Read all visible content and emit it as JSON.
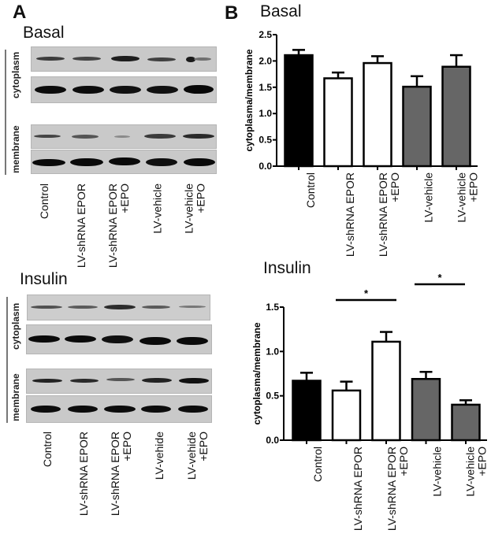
{
  "panel_a": {
    "letter": "A",
    "basal": {
      "title": "Basal",
      "side_labels": [
        "cytoplasm",
        "membrane"
      ],
      "lanes": [
        {
          "line1": "Control",
          "line2": ""
        },
        {
          "line1": "LV-shRNA EPOR",
          "line2": ""
        },
        {
          "line1": "LV-shRNA EPOR",
          "line2": "+EPO"
        },
        {
          "line1": "LV-vehicle",
          "line2": ""
        },
        {
          "line1": "LV-vehicle",
          "line2": "+EPO"
        }
      ]
    },
    "insulin": {
      "title": "Insulin",
      "side_labels": [
        "cytoplasm",
        "membrane"
      ],
      "lanes": [
        {
          "line1": "Control",
          "line2": ""
        },
        {
          "line1": "LV-shRNA EPOR",
          "line2": ""
        },
        {
          "line1": "LV-shRNA EPOR",
          "line2": "+EPO"
        },
        {
          "line1": "LV-vehide",
          "line2": ""
        },
        {
          "line1": "LV-vehide",
          "line2": "+EPO"
        }
      ]
    }
  },
  "panel_b": {
    "letter": "B",
    "colors": {
      "control": "#000000",
      "shrna": "#ffffff",
      "vehicle": "#666666",
      "axis": "#000000"
    }
  },
  "chart_data": [
    {
      "type": "bar",
      "title": "Basal",
      "xlabel": "",
      "ylabel": "cytoplasma/membrane",
      "ylim": [
        0,
        2.5
      ],
      "yticks": [
        "0.0",
        "0.5",
        "1.0",
        "1.5",
        "2.0",
        "2.5"
      ],
      "grid": false,
      "categories": [
        "Control",
        "LV-shRNA EPOR",
        "LV-shRNA EPOR +EPO",
        "LV-vehicle",
        "LV-vehicle +EPO"
      ],
      "values": [
        2.11,
        1.67,
        1.96,
        1.51,
        1.89
      ],
      "error": [
        0.1,
        0.11,
        0.13,
        0.2,
        0.22
      ],
      "bar_colors": [
        "#000000",
        "#ffffff",
        "#ffffff",
        "#666666",
        "#666666"
      ],
      "significance": []
    },
    {
      "type": "bar",
      "title": "Insulin",
      "xlabel": "",
      "ylabel": "cytoplasma/membrane",
      "ylim": [
        0,
        1.5
      ],
      "yticks": [
        "0.0",
        "0.5",
        "1.0",
        "1.5"
      ],
      "grid": false,
      "categories": [
        "Control",
        "LV-shRNA EPOR",
        "LV-shRNA EPOR +EPO",
        "LV-vehicle",
        "LV-vehicle +EPO"
      ],
      "values": [
        0.67,
        0.56,
        1.11,
        0.69,
        0.4
      ],
      "error": [
        0.09,
        0.1,
        0.11,
        0.08,
        0.05
      ],
      "bar_colors": [
        "#000000",
        "#ffffff",
        "#ffffff",
        "#666666",
        "#666666"
      ],
      "significance": [
        {
          "from": "LV-shRNA EPOR",
          "to": "LV-shRNA EPOR +EPO",
          "label": "*"
        },
        {
          "from": "LV-vehicle",
          "to": "LV-vehicle +EPO",
          "label": "*"
        }
      ]
    }
  ]
}
